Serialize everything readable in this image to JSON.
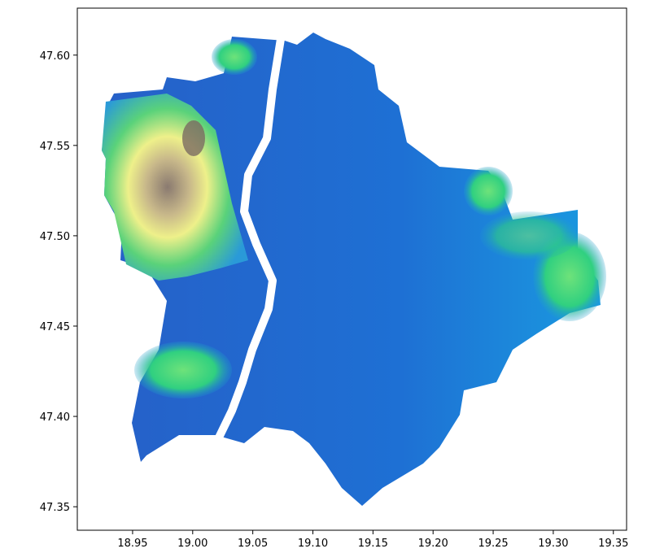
{
  "chart_data": {
    "type": "raster",
    "xlim": [
      18.904,
      19.361
    ],
    "ylim": [
      47.337,
      47.626
    ],
    "xticks": [
      18.95,
      {
        "value": 19.0,
        "label": "19.00"
      },
      19.05,
      {
        "value": 19.1,
        "label": "19.10"
      },
      19.15,
      {
        "value": 19.2,
        "label": "19.20"
      },
      19.25,
      {
        "value": 19.3,
        "label": "19.30"
      },
      19.35
    ],
    "yticks": [
      47.35,
      {
        "value": 47.4,
        "label": "47.40"
      },
      47.45,
      {
        "value": 47.5,
        "label": "47.50"
      },
      47.55,
      {
        "value": 47.6,
        "label": "47.60"
      }
    ]
  }
}
